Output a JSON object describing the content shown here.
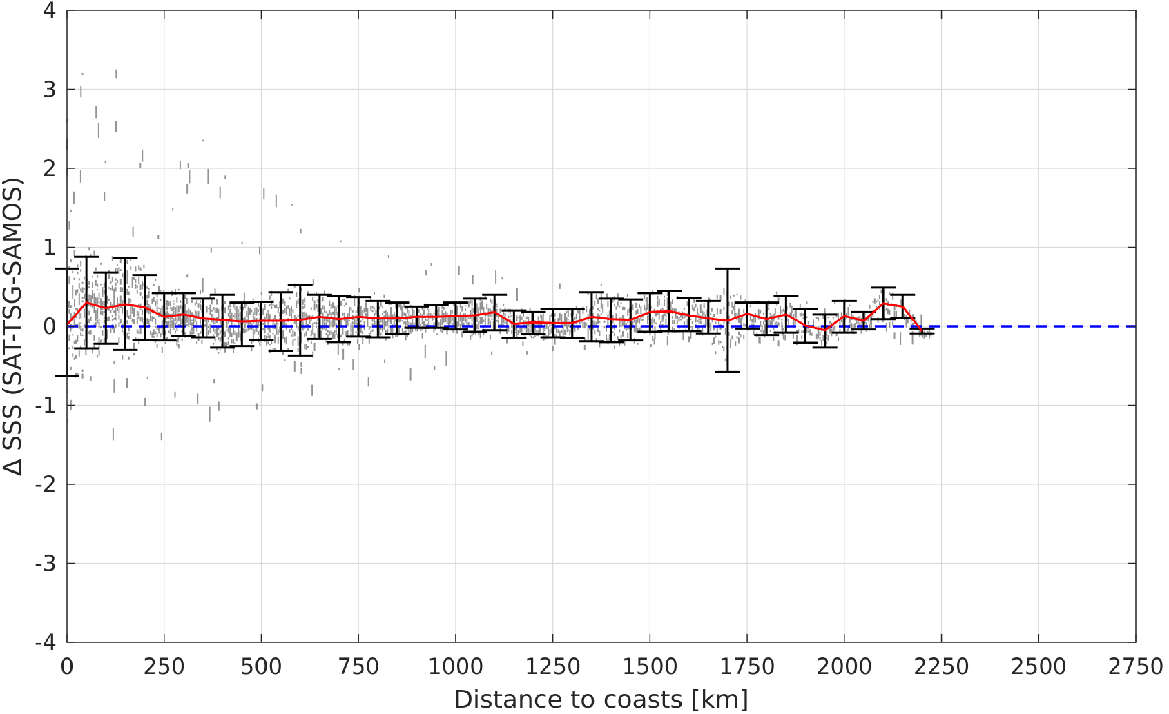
{
  "chart_data": {
    "type": "scatter",
    "title": "",
    "xlabel": "Distance to coasts [km]",
    "ylabel": "Δ SSS (SAT-TSG-SAMOS)",
    "xlim": [
      0,
      2750
    ],
    "ylim": [
      -4,
      4
    ],
    "xticks": [
      0,
      250,
      500,
      750,
      1000,
      1250,
      1500,
      1750,
      2000,
      2250,
      2500,
      2750
    ],
    "yticks": [
      -4,
      -3,
      -2,
      -1,
      0,
      1,
      2,
      3,
      4
    ],
    "grid": true,
    "colors": {
      "scatter": "#808080",
      "mean_line": "#ff0000",
      "zero_line": "#0000ff",
      "error_bars": "#000000",
      "grid": "#d9d9d9",
      "axes": "#262626"
    },
    "zero_line": {
      "y": 0,
      "style": "dashed"
    },
    "series": [
      {
        "kind": "binned-mean-with-error-bars",
        "x": [
          0,
          50,
          100,
          150,
          200,
          250,
          300,
          350,
          400,
          450,
          500,
          550,
          600,
          650,
          700,
          750,
          800,
          850,
          900,
          950,
          1000,
          1050,
          1100,
          1150,
          1200,
          1250,
          1300,
          1350,
          1400,
          1450,
          1500,
          1550,
          1600,
          1650,
          1700,
          1750,
          1800,
          1850,
          1900,
          1950,
          2000,
          2050,
          2100,
          2150,
          2200
        ],
        "mean": [
          0.02,
          0.3,
          0.23,
          0.28,
          0.24,
          0.12,
          0.15,
          0.1,
          0.08,
          0.06,
          0.07,
          0.07,
          0.08,
          0.12,
          0.09,
          0.12,
          0.1,
          0.1,
          0.12,
          0.12,
          0.13,
          0.14,
          0.18,
          0.03,
          0.05,
          0.04,
          0.04,
          0.12,
          0.09,
          0.08,
          0.18,
          0.19,
          0.14,
          0.1,
          0.07,
          0.16,
          0.09,
          0.15,
          0.01,
          -0.05,
          0.13,
          0.07,
          0.29,
          0.25,
          -0.06
        ],
        "upper": [
          0.73,
          0.88,
          0.68,
          0.86,
          0.65,
          0.42,
          0.42,
          0.35,
          0.4,
          0.3,
          0.31,
          0.43,
          0.52,
          0.4,
          0.38,
          0.37,
          0.32,
          0.3,
          0.25,
          0.27,
          0.3,
          0.35,
          0.4,
          0.2,
          0.18,
          0.22,
          0.22,
          0.43,
          0.35,
          0.34,
          0.42,
          0.45,
          0.36,
          0.32,
          0.73,
          0.3,
          0.3,
          0.38,
          0.22,
          0.15,
          0.32,
          0.18,
          0.49,
          0.4,
          -0.03
        ],
        "lower": [
          -0.63,
          -0.28,
          -0.22,
          -0.3,
          -0.17,
          -0.18,
          -0.12,
          -0.14,
          -0.27,
          -0.25,
          -0.17,
          -0.31,
          -0.37,
          -0.16,
          -0.2,
          -0.13,
          -0.14,
          -0.1,
          -0.02,
          -0.02,
          -0.04,
          -0.07,
          -0.05,
          -0.15,
          -0.1,
          -0.14,
          -0.15,
          -0.19,
          -0.2,
          -0.18,
          -0.07,
          -0.06,
          -0.06,
          -0.09,
          -0.58,
          -0.03,
          -0.11,
          -0.08,
          -0.21,
          -0.27,
          -0.08,
          -0.04,
          0.09,
          0.1,
          -0.09
        ]
      }
    ]
  }
}
